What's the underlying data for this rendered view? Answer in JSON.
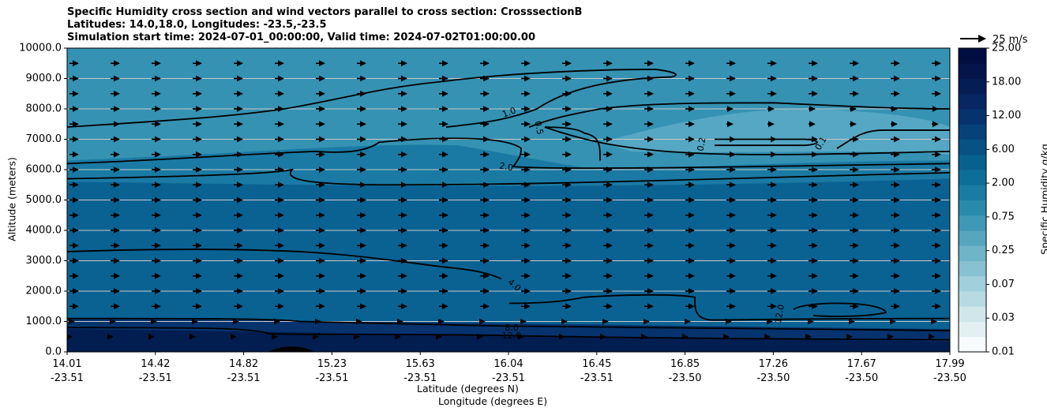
{
  "chart_data": {
    "type": "heatmap",
    "title_lines": [
      "Specific Humidity cross section and wind vectors parallel to cross section: CrosssectionB",
      "Latitudes: 14.0,18.0, Longitudes: -23.5,-23.5",
      "Simulation start time: 2024-07-01_00:00:00, Valid time: 2024-07-02T01:00:00.00"
    ],
    "xlabel_lat": "Latitude (degrees N)",
    "xlabel_lon": "Longitude (degrees E)",
    "ylabel": "Altitude (meters)",
    "colorbar_label": "Specific Humidity g/kg",
    "quiver_key": "25 m/s",
    "ylim": [
      0,
      10000
    ],
    "yticks": [
      "0.0",
      "1000.0",
      "2000.0",
      "3000.0",
      "4000.0",
      "5000.0",
      "6000.0",
      "7000.0",
      "8000.0",
      "9000.0",
      "10000.0"
    ],
    "xticks_lat": [
      "14.01",
      "14.42",
      "14.82",
      "15.23",
      "15.63",
      "16.04",
      "16.45",
      "16.85",
      "17.26",
      "17.67",
      "17.99"
    ],
    "xticks_lon": [
      "-23.51",
      "-23.51",
      "-23.51",
      "-23.51",
      "-23.51",
      "-23.51",
      "-23.51",
      "-23.50",
      "-23.50",
      "-23.50",
      "-23.50"
    ],
    "colorbar_ticks": [
      "0.01",
      "0.03",
      "0.07",
      "0.25",
      "0.75",
      "2.00",
      "6.00",
      "12.00",
      "18.00",
      "25.00"
    ],
    "colorbar_colors": [
      "#f7fbfc",
      "#e3f0f3",
      "#cfe6eb",
      "#b8dbe3",
      "#a1cfdb",
      "#88c2d2",
      "#6fb4c8",
      "#57a6be",
      "#3f98b5",
      "#2a8aac",
      "#1a7ca3",
      "#0e6e9a",
      "#08608f",
      "#075184",
      "#064279",
      "#06336d",
      "#062761",
      "#051d55",
      "#04154a",
      "#030e40"
    ],
    "contour_labels": [
      "1.0",
      "0.5",
      "0.2",
      "0.1",
      "2.0",
      "4.0",
      "8.0",
      "12.0",
      "12.0"
    ],
    "background_colors": {
      "upper": "#3592b3",
      "mid": "#1a7aa3",
      "low": "#0a6293",
      "bottom": "#06336d",
      "surface": "#021d4f",
      "light_patch": "#5aaac5"
    }
  }
}
